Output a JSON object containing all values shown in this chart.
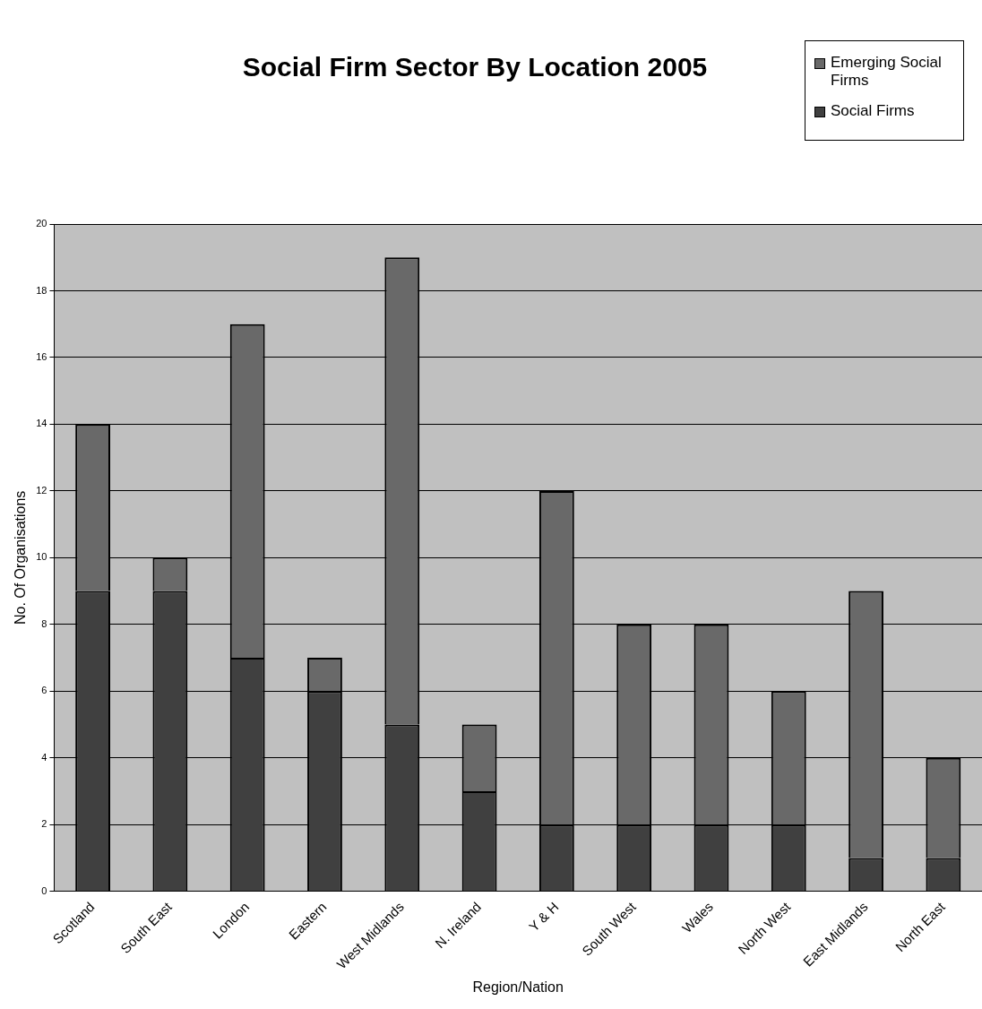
{
  "chart_data": {
    "type": "bar",
    "title": "Social Firm Sector By Location 2005",
    "xlabel": "Region/Nation",
    "ylabel": "No. Of Organisations",
    "categories": [
      "Scotland",
      "South East",
      "London",
      "Eastern",
      "West Midlands",
      "N. Ireland",
      "Y & H",
      "South West",
      "Wales",
      "North West",
      "East Midlands",
      "North East"
    ],
    "series": [
      {
        "name": "Social Firms",
        "color": "#404040",
        "values": [
          9,
          9,
          7,
          6,
          5,
          3,
          2,
          2,
          2,
          2,
          1,
          1
        ]
      },
      {
        "name": "Emerging Social Firms",
        "color": "#696969",
        "values": [
          5,
          1,
          10,
          1,
          14,
          2,
          10,
          6,
          6,
          4,
          8,
          3
        ]
      }
    ],
    "stacked": true,
    "ylim": [
      0,
      20
    ],
    "yticks": [
      0,
      2,
      4,
      6,
      8,
      10,
      12,
      14,
      16,
      18,
      20
    ],
    "grid": "y",
    "legend": "top right"
  }
}
